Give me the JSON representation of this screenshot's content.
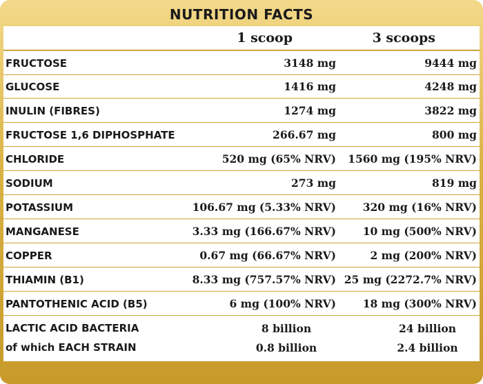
{
  "title": "NUTRITION FACTS",
  "columns": {
    "per_1": "1 scoop",
    "per_3": "3 scoops"
  },
  "rows": [
    {
      "name": "FRUCTOSE",
      "v1": "3148 mg",
      "v3": "9444 mg"
    },
    {
      "name": "GLUCOSE",
      "v1": "1416 mg",
      "v3": "4248 mg"
    },
    {
      "name": "INULIN (FIBRES)",
      "v1": "1274 mg",
      "v3": "3822 mg"
    },
    {
      "name": "FRUCTOSE 1,6 DIPHOSPHATE",
      "v1": "266.67 mg",
      "v3": "800 mg"
    },
    {
      "name": "CHLORIDE",
      "v1": "520 mg (65% NRV)",
      "v3": "1560 mg (195% NRV)"
    },
    {
      "name": "SODIUM",
      "v1": "273 mg",
      "v3": "819 mg"
    },
    {
      "name": "POTASSIUM",
      "v1": "106.67 mg (5.33% NRV)",
      "v3": "320 mg (16% NRV)"
    },
    {
      "name": "MANGANESE",
      "v1": "3.33 mg (166.67% NRV)",
      "v3": "10 mg (500% NRV)"
    },
    {
      "name": "COPPER",
      "v1": "0.67 mg (66.67% NRV)",
      "v3": "2 mg (200% NRV)"
    },
    {
      "name": "THIAMIN (B1)",
      "v1": "8.33 mg (757.57% NRV)",
      "v3": "25 mg (2272.7% NRV)"
    },
    {
      "name": "PANTOTHENIC ACID (B5)",
      "v1": "6 mg (100% NRV)",
      "v3": "18 mg (300% NRV)"
    }
  ],
  "bacteria": {
    "name_line1": "LACTIC ACID BACTERIA",
    "name_line2": "of which EACH STRAIN",
    "v1_line1": "8 billion",
    "v1_line2": "0.8 billion",
    "v3_line1": "24 billion",
    "v3_line2": "2.4 billion"
  },
  "colors": {
    "gold_light": "#f3d98a",
    "gold_dark": "#c79a2a",
    "rule": "#c9a23a",
    "text": "#1a1a1a"
  }
}
